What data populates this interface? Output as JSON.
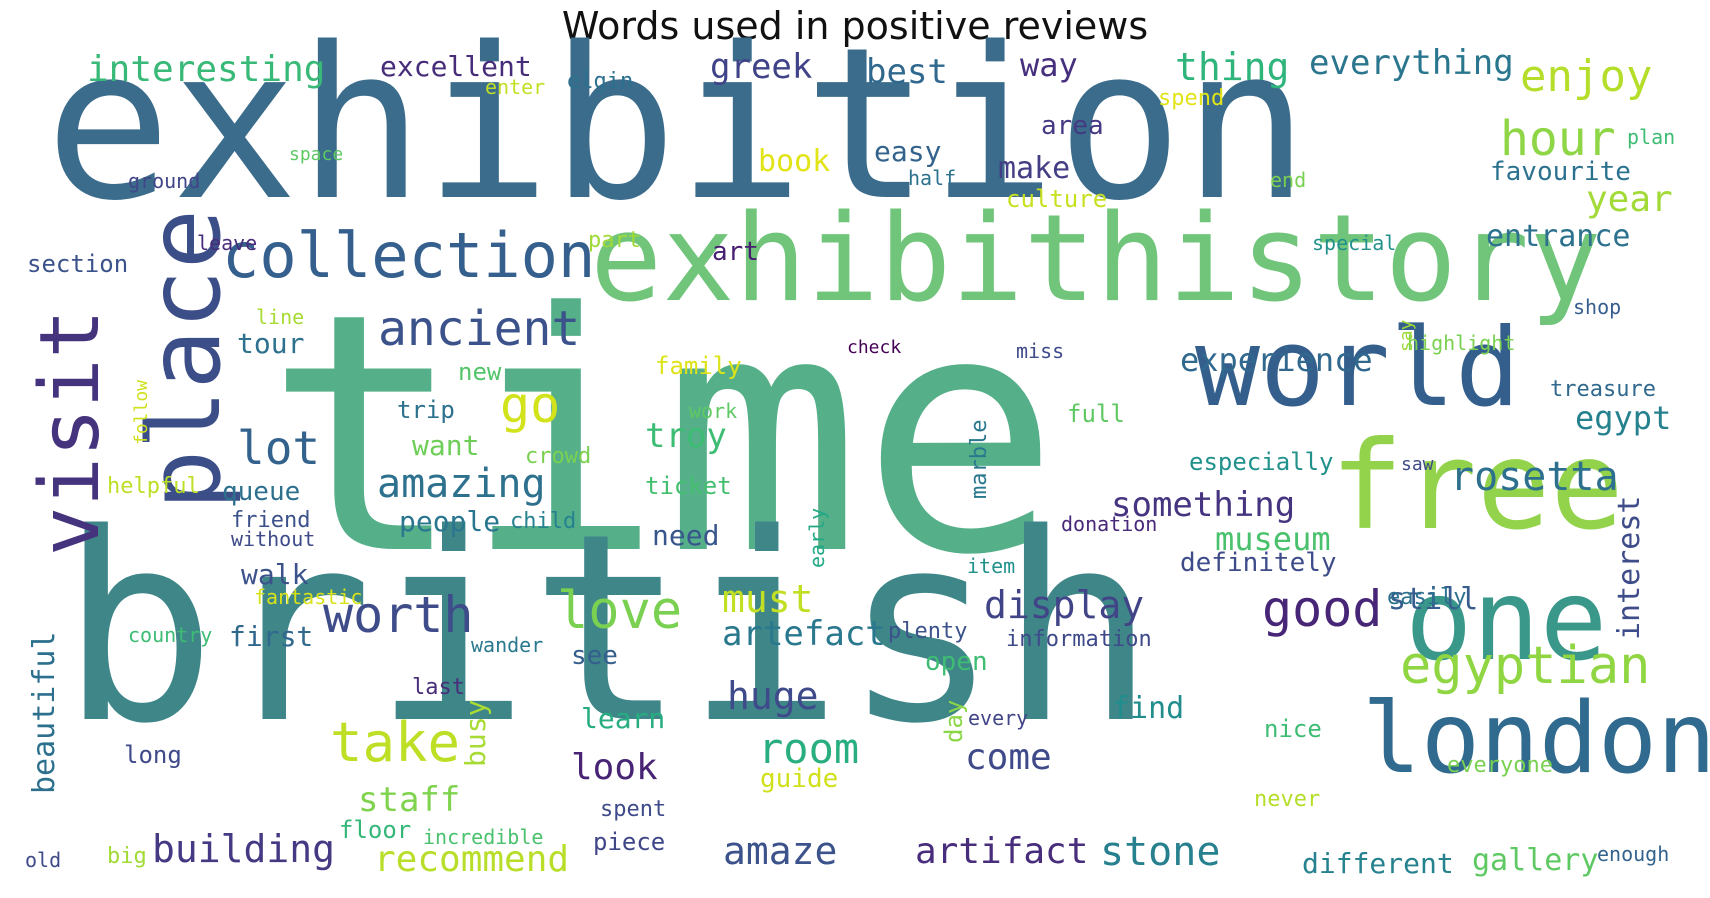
{
  "title": "Words used in positive reviews",
  "words": [
    {
      "text": "time",
      "color": "#55b08a"
    },
    {
      "text": "british",
      "color": "#3f8689"
    },
    {
      "text": "exhibition",
      "color": "#3b6c8c"
    },
    {
      "text": "exhibithistory",
      "color": "#70c57a"
    },
    {
      "text": "place",
      "color": "#3b4e87"
    },
    {
      "text": "visit",
      "color": "#46337e"
    },
    {
      "text": "free",
      "color": "#93d34b"
    },
    {
      "text": "world",
      "color": "#345f8d"
    },
    {
      "text": "one",
      "color": "#3a988a"
    },
    {
      "text": "london",
      "color": "#306a8e"
    },
    {
      "text": "collection",
      "color": "#355f8d"
    },
    {
      "text": "ancient",
      "color": "#3b528b"
    },
    {
      "text": "egyptian",
      "color": "#90d643"
    },
    {
      "text": "love",
      "color": "#7ad151"
    },
    {
      "text": "worth",
      "color": "#3e4c8a"
    },
    {
      "text": "take",
      "color": "#bddf26"
    },
    {
      "text": "good",
      "color": "#482677"
    },
    {
      "text": "rosetta",
      "color": "#2d708e"
    },
    {
      "text": "hour",
      "color": "#8ed645"
    },
    {
      "text": "enjoy",
      "color": "#b5de2b"
    },
    {
      "text": "go",
      "color": "#d2e21b"
    },
    {
      "text": "lot",
      "color": "#33638d"
    },
    {
      "text": "amazing",
      "color": "#2d718e"
    },
    {
      "text": "display",
      "color": "#414487"
    },
    {
      "text": "room",
      "color": "#29af7f"
    },
    {
      "text": "huge",
      "color": "#3e4a89"
    },
    {
      "text": "must",
      "color": "#c2df23"
    },
    {
      "text": "artefact",
      "color": "#2a788e"
    },
    {
      "text": "building",
      "color": "#443983"
    },
    {
      "text": "amaze",
      "color": "#3b528b"
    },
    {
      "text": "artifact",
      "color": "#472d7b"
    },
    {
      "text": "stone",
      "color": "#27808e"
    },
    {
      "text": "recommend",
      "color": "#b8de29"
    },
    {
      "text": "come",
      "color": "#3e4a89"
    },
    {
      "text": "look",
      "color": "#482475"
    },
    {
      "text": "staff",
      "color": "#7fd34e"
    },
    {
      "text": "interesting",
      "color": "#38b977"
    },
    {
      "text": "excellent",
      "color": "#472c7a"
    },
    {
      "text": "greek",
      "color": "#404387"
    },
    {
      "text": "best",
      "color": "#31688e"
    },
    {
      "text": "way",
      "color": "#46307e"
    },
    {
      "text": "thing",
      "color": "#2fb47c"
    },
    {
      "text": "everything",
      "color": "#2a768e"
    },
    {
      "text": "year",
      "color": "#a2da37"
    },
    {
      "text": "entrance",
      "color": "#2c718e"
    },
    {
      "text": "experience",
      "color": "#31688e"
    },
    {
      "text": "egypt",
      "color": "#26818e"
    },
    {
      "text": "something",
      "color": "#463480"
    },
    {
      "text": "museum",
      "color": "#4ac16d"
    },
    {
      "text": "definitely",
      "color": "#3e4c8a"
    },
    {
      "text": "still",
      "color": "#365d8d"
    },
    {
      "text": "interest",
      "color": "#3e4c8a"
    },
    {
      "text": "beautiful",
      "color": "#2d708e"
    },
    {
      "text": "gallery",
      "color": "#5ec962"
    },
    {
      "text": "different",
      "color": "#26828e"
    },
    {
      "text": "find",
      "color": "#218e8d"
    },
    {
      "text": "learn",
      "color": "#27ad81"
    },
    {
      "text": "guide",
      "color": "#d0e11c"
    },
    {
      "text": "tour",
      "color": "#2d718e"
    },
    {
      "text": "troy",
      "color": "#3dbc74"
    },
    {
      "text": "want",
      "color": "#6ece58"
    },
    {
      "text": "people",
      "color": "#2a768e"
    },
    {
      "text": "need",
      "color": "#39568c"
    },
    {
      "text": "first",
      "color": "#31688e"
    },
    {
      "text": "walk",
      "color": "#3b528b"
    },
    {
      "text": "make",
      "color": "#433e85"
    },
    {
      "text": "easy",
      "color": "#33638d"
    },
    {
      "text": "book",
      "color": "#e2e418"
    },
    {
      "text": "culture",
      "color": "#c8e020"
    },
    {
      "text": "area",
      "color": "#443983"
    },
    {
      "text": "favourite",
      "color": "#2c728e"
    },
    {
      "text": "art",
      "color": "#481f70"
    },
    {
      "text": "queue",
      "color": "#2d708e"
    },
    {
      "text": "busy",
      "color": "#a8db34"
    },
    {
      "text": "day",
      "color": "#8bd646"
    },
    {
      "text": "see",
      "color": "#355f8d"
    },
    {
      "text": "piece",
      "color": "#404688"
    },
    {
      "text": "open",
      "color": "#3fbc73"
    },
    {
      "text": "plenty",
      "color": "#3b528b"
    },
    {
      "text": "information",
      "color": "#3e4a89"
    },
    {
      "text": "marble",
      "color": "#2a788e"
    },
    {
      "text": "ticket",
      "color": "#44bf70"
    },
    {
      "text": "family",
      "color": "#dde318"
    },
    {
      "text": "trip",
      "color": "#2c728e"
    },
    {
      "text": "new",
      "color": "#52c569"
    },
    {
      "text": "crowd",
      "color": "#7ad151"
    },
    {
      "text": "work",
      "color": "#5ec962"
    },
    {
      "text": "full",
      "color": "#5ec962"
    },
    {
      "text": "especially",
      "color": "#21918c"
    },
    {
      "text": "donation",
      "color": "#482878"
    },
    {
      "text": "friend",
      "color": "#3b528b"
    },
    {
      "text": "without",
      "color": "#3e4a89"
    },
    {
      "text": "child",
      "color": "#26828e"
    },
    {
      "text": "helpful",
      "color": "#bddf26"
    },
    {
      "text": "fantastic",
      "color": "#d8e219"
    },
    {
      "text": "country",
      "color": "#3dbc74"
    },
    {
      "text": "long",
      "color": "#3e4a89"
    },
    {
      "text": "last",
      "color": "#472d7b"
    },
    {
      "text": "wander",
      "color": "#2a788e"
    },
    {
      "text": "old",
      "color": "#3e4a89"
    },
    {
      "text": "big",
      "color": "#a2da37"
    },
    {
      "text": "floor",
      "color": "#35b779"
    },
    {
      "text": "incredible",
      "color": "#4ac16d"
    },
    {
      "text": "spent",
      "color": "#3e4a89"
    },
    {
      "text": "never",
      "color": "#b5de2b"
    },
    {
      "text": "nice",
      "color": "#3fbc73"
    },
    {
      "text": "everyone",
      "color": "#7ad151"
    },
    {
      "text": "enough",
      "color": "#33638d"
    },
    {
      "text": "every",
      "color": "#414487"
    },
    {
      "text": "item",
      "color": "#21918c"
    },
    {
      "text": "early",
      "color": "#22a884"
    },
    {
      "text": "saw",
      "color": "#3e4a89"
    },
    {
      "text": "easily",
      "color": "#2c718e"
    },
    {
      "text": "treasure",
      "color": "#31688e"
    },
    {
      "text": "highlight",
      "color": "#7ad151"
    },
    {
      "text": "shop",
      "color": "#365d8d"
    },
    {
      "text": "say",
      "color": "#9fda3a"
    },
    {
      "text": "miss",
      "color": "#3e4a89"
    },
    {
      "text": "check",
      "color": "#440154"
    },
    {
      "text": "special",
      "color": "#21918c"
    },
    {
      "text": "line",
      "color": "#a8db34"
    },
    {
      "text": "follow",
      "color": "#d0e11c"
    },
    {
      "text": "section",
      "color": "#3b528b"
    },
    {
      "text": "leave",
      "color": "#472d7b"
    },
    {
      "text": "part",
      "color": "#a0da39"
    },
    {
      "text": "ground",
      "color": "#404688"
    },
    {
      "text": "space",
      "color": "#5ec962"
    },
    {
      "text": "half",
      "color": "#2c728e"
    },
    {
      "text": "end",
      "color": "#7ad151"
    },
    {
      "text": "plan",
      "color": "#3fbc73"
    },
    {
      "text": "spend",
      "color": "#e2e418"
    },
    {
      "text": "elgin",
      "color": "#2d708e"
    },
    {
      "text": "enter",
      "color": "#c2df23"
    }
  ]
}
